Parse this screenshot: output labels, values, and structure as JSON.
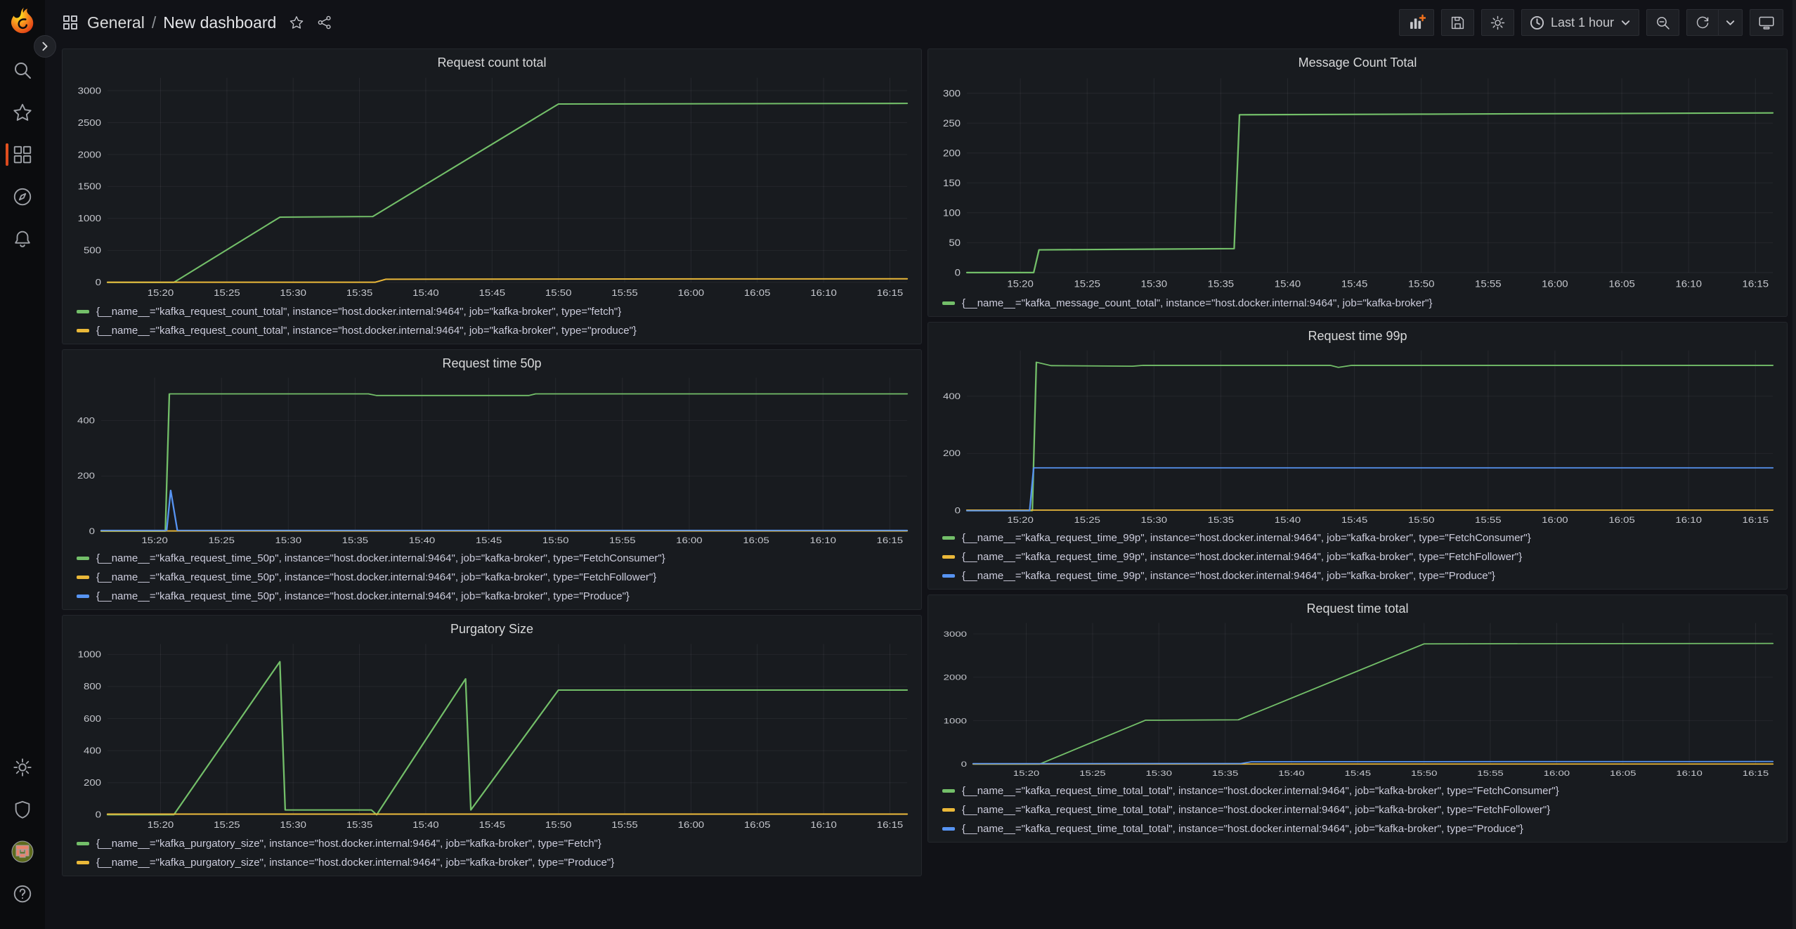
{
  "app_title": "Grafana dashboard",
  "colors": {
    "green": "#73BF69",
    "yellow": "#EAB839",
    "blue": "#5794F2",
    "accent_orange": "#E5531F"
  },
  "sidebar": {
    "top_items": [
      "grafana-logo",
      "search-icon",
      "starred-icon",
      "dashboards-icon",
      "explore-icon",
      "alerting-icon"
    ],
    "bottom_items": [
      "settings-icon",
      "server-admin-icon",
      "user-avatar",
      "help-icon"
    ],
    "active_item": "dashboards"
  },
  "topnav": {
    "breadcrumb": {
      "section": "General",
      "separator": "/",
      "page": "New dashboard"
    },
    "left_icons": [
      "dashboards-grid-icon",
      "star-icon",
      "share-icon"
    ],
    "toolbar": {
      "time_range_label": "Last 1 hour",
      "icons": [
        "add-panel-icon",
        "save-dashboard-icon",
        "dashboard-settings-icon",
        "clock-icon",
        "zoom-out-icon",
        "refresh-icon",
        "refresh-interval-chevron-icon",
        "cycle-view-mode-icon"
      ]
    }
  },
  "chart_data": [
    {
      "type": "line",
      "title": "Request count total",
      "xlabel": "",
      "ylabel": "",
      "grid": true,
      "legend_position": "bottom",
      "xdomain": [
        916,
        976.3
      ],
      "ydomain": [
        0,
        3200
      ],
      "yticks": [
        {
          "v": 0,
          "label": "0"
        },
        {
          "v": 500,
          "label": "500"
        },
        {
          "v": 1000,
          "label": "1000"
        },
        {
          "v": 1500,
          "label": "1500"
        },
        {
          "v": 2000,
          "label": "2000"
        },
        {
          "v": 2500,
          "label": "2500"
        },
        {
          "v": 3000,
          "label": "3000"
        }
      ],
      "xticks": [
        {
          "v": 920,
          "label": "15:20"
        },
        {
          "v": 925,
          "label": "15:25"
        },
        {
          "v": 930,
          "label": "15:30"
        },
        {
          "v": 935,
          "label": "15:35"
        },
        {
          "v": 940,
          "label": "15:40"
        },
        {
          "v": 945,
          "label": "15:45"
        },
        {
          "v": 950,
          "label": "15:50"
        },
        {
          "v": 955,
          "label": "15:55"
        },
        {
          "v": 960,
          "label": "16:00"
        },
        {
          "v": 965,
          "label": "16:05"
        },
        {
          "v": 970,
          "label": "16:10"
        },
        {
          "v": 975,
          "label": "16:15"
        }
      ],
      "series": [
        {
          "color": "green",
          "label": "{__name__=\"kafka_request_count_total\", instance=\"host.docker.internal:9464\", job=\"kafka-broker\", type=\"fetch\"}",
          "points": [
            [
              916,
              0
            ],
            [
              921,
              0
            ],
            [
              929,
              1020
            ],
            [
              936,
              1030
            ],
            [
              950,
              2790
            ],
            [
              976.3,
              2800
            ]
          ]
        },
        {
          "color": "yellow",
          "label": "{__name__=\"kafka_request_count_total\", instance=\"host.docker.internal:9464\", job=\"kafka-broker\", type=\"produce\"}",
          "points": [
            [
              916,
              2
            ],
            [
              936.2,
              3
            ],
            [
              937,
              50
            ],
            [
              976.3,
              57
            ]
          ]
        }
      ]
    },
    {
      "type": "line",
      "title": "Message Count Total",
      "xlabel": "",
      "ylabel": "",
      "grid": true,
      "legend_position": "bottom",
      "xdomain": [
        916,
        976.3
      ],
      "ydomain": [
        0,
        325
      ],
      "yticks": [
        {
          "v": 0,
          "label": "0"
        },
        {
          "v": 50,
          "label": "50"
        },
        {
          "v": 100,
          "label": "100"
        },
        {
          "v": 150,
          "label": "150"
        },
        {
          "v": 200,
          "label": "200"
        },
        {
          "v": 250,
          "label": "250"
        },
        {
          "v": 300,
          "label": "300"
        }
      ],
      "xticks": [
        {
          "v": 920,
          "label": "15:20"
        },
        {
          "v": 925,
          "label": "15:25"
        },
        {
          "v": 930,
          "label": "15:30"
        },
        {
          "v": 935,
          "label": "15:35"
        },
        {
          "v": 940,
          "label": "15:40"
        },
        {
          "v": 945,
          "label": "15:45"
        },
        {
          "v": 950,
          "label": "15:50"
        },
        {
          "v": 955,
          "label": "15:55"
        },
        {
          "v": 960,
          "label": "16:00"
        },
        {
          "v": 965,
          "label": "16:05"
        },
        {
          "v": 970,
          "label": "16:10"
        },
        {
          "v": 975,
          "label": "16:15"
        }
      ],
      "series": [
        {
          "color": "green",
          "label": "{__name__=\"kafka_message_count_total\", instance=\"host.docker.internal:9464\", job=\"kafka-broker\"}",
          "points": [
            [
              916,
              0
            ],
            [
              921,
              0
            ],
            [
              921.4,
              38
            ],
            [
              936,
              40
            ],
            [
              936.4,
              264
            ],
            [
              950,
              265
            ],
            [
              976.3,
              267
            ]
          ]
        }
      ]
    },
    {
      "type": "line",
      "title": "Request time 50p",
      "xlabel": "",
      "ylabel": "",
      "grid": true,
      "legend_position": "bottom",
      "xdomain": [
        916,
        976.3
      ],
      "ydomain": [
        0,
        555
      ],
      "yticks": [
        {
          "v": 0,
          "label": "0"
        },
        {
          "v": 200,
          "label": "200"
        },
        {
          "v": 400,
          "label": "400"
        }
      ],
      "xticks": [
        {
          "v": 920,
          "label": "15:20"
        },
        {
          "v": 925,
          "label": "15:25"
        },
        {
          "v": 930,
          "label": "15:30"
        },
        {
          "v": 935,
          "label": "15:35"
        },
        {
          "v": 940,
          "label": "15:40"
        },
        {
          "v": 945,
          "label": "15:45"
        },
        {
          "v": 950,
          "label": "15:50"
        },
        {
          "v": 955,
          "label": "15:55"
        },
        {
          "v": 960,
          "label": "16:00"
        },
        {
          "v": 965,
          "label": "16:05"
        },
        {
          "v": 970,
          "label": "16:10"
        },
        {
          "v": 975,
          "label": "16:15"
        }
      ],
      "series": [
        {
          "color": "green",
          "label": "{__name__=\"kafka_request_time_50p\", instance=\"host.docker.internal:9464\", job=\"kafka-broker\", type=\"FetchConsumer\"}",
          "points": [
            [
              916,
              0
            ],
            [
              920.8,
              0
            ],
            [
              921.1,
              497
            ],
            [
              936,
              497
            ],
            [
              936.6,
              491
            ],
            [
              948,
              491
            ],
            [
              948.5,
              497
            ],
            [
              976.3,
              497
            ]
          ]
        },
        {
          "color": "yellow",
          "label": "{__name__=\"kafka_request_time_50p\", instance=\"host.docker.internal:9464\", job=\"kafka-broker\", type=\"FetchFollower\"}",
          "points": [
            [
              916,
              1
            ],
            [
              976.3,
              1
            ]
          ]
        },
        {
          "color": "blue",
          "label": "{__name__=\"kafka_request_time_50p\", instance=\"host.docker.internal:9464\", job=\"kafka-broker\", type=\"Produce\"}",
          "points": [
            [
              916,
              3
            ],
            [
              920.9,
              3
            ],
            [
              921.2,
              148
            ],
            [
              921.7,
              3
            ],
            [
              976.3,
              3
            ]
          ]
        }
      ]
    },
    {
      "type": "line",
      "title": "Request time 99p",
      "xlabel": "",
      "ylabel": "",
      "grid": true,
      "legend_position": "bottom",
      "xdomain": [
        916,
        976.3
      ],
      "ydomain": [
        0,
        560
      ],
      "yticks": [
        {
          "v": 0,
          "label": "0"
        },
        {
          "v": 200,
          "label": "200"
        },
        {
          "v": 400,
          "label": "400"
        }
      ],
      "xticks": [
        {
          "v": 920,
          "label": "15:20"
        },
        {
          "v": 925,
          "label": "15:25"
        },
        {
          "v": 930,
          "label": "15:30"
        },
        {
          "v": 935,
          "label": "15:35"
        },
        {
          "v": 940,
          "label": "15:40"
        },
        {
          "v": 945,
          "label": "15:45"
        },
        {
          "v": 950,
          "label": "15:50"
        },
        {
          "v": 955,
          "label": "15:55"
        },
        {
          "v": 960,
          "label": "16:00"
        },
        {
          "v": 965,
          "label": "16:05"
        },
        {
          "v": 970,
          "label": "16:10"
        },
        {
          "v": 975,
          "label": "16:15"
        }
      ],
      "series": [
        {
          "color": "green",
          "label": "{__name__=\"kafka_request_time_99p\", instance=\"host.docker.internal:9464\", job=\"kafka-broker\", type=\"FetchConsumer\"}",
          "points": [
            [
              916,
              0
            ],
            [
              920.9,
              0
            ],
            [
              921.2,
              519
            ],
            [
              922.3,
              507
            ],
            [
              928.4,
              505
            ],
            [
              929.2,
              508
            ],
            [
              943.2,
              508
            ],
            [
              943.8,
              501
            ],
            [
              944.8,
              508
            ],
            [
              976.3,
              508
            ]
          ]
        },
        {
          "color": "yellow",
          "label": "{__name__=\"kafka_request_time_99p\", instance=\"host.docker.internal:9464\", job=\"kafka-broker\", type=\"FetchFollower\"}",
          "points": [
            [
              916,
              2
            ],
            [
              976.3,
              2
            ]
          ]
        },
        {
          "color": "blue",
          "label": "{__name__=\"kafka_request_time_99p\", instance=\"host.docker.internal:9464\", job=\"kafka-broker\", type=\"Produce\"}",
          "points": [
            [
              916,
              0
            ],
            [
              920.7,
              0
            ],
            [
              921,
              150
            ],
            [
              976.3,
              150
            ]
          ]
        }
      ]
    },
    {
      "type": "line",
      "title": "Purgatory Size",
      "xlabel": "",
      "ylabel": "",
      "grid": true,
      "legend_position": "bottom",
      "xdomain": [
        916,
        976.3
      ],
      "ydomain": [
        0,
        1065
      ],
      "yticks": [
        {
          "v": 0,
          "label": "0"
        },
        {
          "v": 200,
          "label": "200"
        },
        {
          "v": 400,
          "label": "400"
        },
        {
          "v": 600,
          "label": "600"
        },
        {
          "v": 800,
          "label": "800"
        },
        {
          "v": 1000,
          "label": "1000"
        }
      ],
      "xticks": [
        {
          "v": 920,
          "label": "15:20"
        },
        {
          "v": 925,
          "label": "15:25"
        },
        {
          "v": 930,
          "label": "15:30"
        },
        {
          "v": 935,
          "label": "15:35"
        },
        {
          "v": 940,
          "label": "15:40"
        },
        {
          "v": 945,
          "label": "15:45"
        },
        {
          "v": 950,
          "label": "15:50"
        },
        {
          "v": 955,
          "label": "15:55"
        },
        {
          "v": 960,
          "label": "16:00"
        },
        {
          "v": 965,
          "label": "16:05"
        },
        {
          "v": 970,
          "label": "16:10"
        },
        {
          "v": 975,
          "label": "16:15"
        }
      ],
      "series": [
        {
          "color": "green",
          "label": "{__name__=\"kafka_purgatory_size\", instance=\"host.docker.internal:9464\", job=\"kafka-broker\", type=\"Fetch\"}",
          "points": [
            [
              916,
              0
            ],
            [
              921,
              0
            ],
            [
              929,
              955
            ],
            [
              929.4,
              30
            ],
            [
              935.9,
              30
            ],
            [
              936.3,
              0
            ],
            [
              943,
              848
            ],
            [
              943.4,
              30
            ],
            [
              950,
              778
            ],
            [
              976.3,
              778
            ]
          ]
        },
        {
          "color": "yellow",
          "label": "{__name__=\"kafka_purgatory_size\", instance=\"host.docker.internal:9464\", job=\"kafka-broker\", type=\"Produce\"}",
          "points": [
            [
              916,
              4
            ],
            [
              976.3,
              4
            ]
          ]
        }
      ]
    },
    {
      "type": "line",
      "title": "Request time total",
      "xlabel": "",
      "ylabel": "",
      "grid": true,
      "legend_position": "bottom",
      "xdomain": [
        916,
        976.3
      ],
      "ydomain": [
        0,
        3250
      ],
      "yticks": [
        {
          "v": 0,
          "label": "0"
        },
        {
          "v": 1000,
          "label": "1000"
        },
        {
          "v": 2000,
          "label": "2000"
        },
        {
          "v": 3000,
          "label": "3000"
        }
      ],
      "xticks": [
        {
          "v": 920,
          "label": "15:20"
        },
        {
          "v": 925,
          "label": "15:25"
        },
        {
          "v": 930,
          "label": "15:30"
        },
        {
          "v": 935,
          "label": "15:35"
        },
        {
          "v": 940,
          "label": "15:40"
        },
        {
          "v": 945,
          "label": "15:45"
        },
        {
          "v": 950,
          "label": "15:50"
        },
        {
          "v": 955,
          "label": "15:55"
        },
        {
          "v": 960,
          "label": "16:00"
        },
        {
          "v": 965,
          "label": "16:05"
        },
        {
          "v": 970,
          "label": "16:10"
        },
        {
          "v": 975,
          "label": "16:15"
        }
      ],
      "series": [
        {
          "color": "green",
          "label": "{__name__=\"kafka_request_time_total_total\", instance=\"host.docker.internal:9464\", job=\"kafka-broker\", type=\"FetchConsumer\"}",
          "points": [
            [
              916,
              0
            ],
            [
              921,
              0
            ],
            [
              929,
              1010
            ],
            [
              936,
              1020
            ],
            [
              950,
              2770
            ],
            [
              976.3,
              2780
            ]
          ]
        },
        {
          "color": "yellow",
          "label": "{__name__=\"kafka_request_time_total_total\", instance=\"host.docker.internal:9464\", job=\"kafka-broker\", type=\"FetchFollower\"}",
          "points": [
            [
              916,
              3
            ],
            [
              976.3,
              3
            ]
          ]
        },
        {
          "color": "blue",
          "label": "{__name__=\"kafka_request_time_total_total\", instance=\"host.docker.internal:9464\", job=\"kafka-broker\", type=\"Produce\"}",
          "points": [
            [
              916,
              12
            ],
            [
              936.2,
              14
            ],
            [
              937,
              55
            ],
            [
              976.3,
              60
            ]
          ]
        }
      ]
    }
  ]
}
